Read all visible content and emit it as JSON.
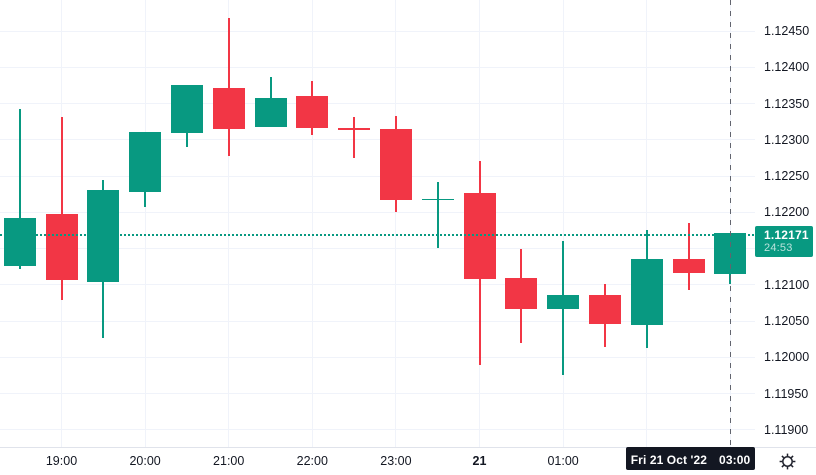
{
  "chart_data": {
    "type": "candlestick",
    "interval_minutes": 30,
    "up_color": "#089981",
    "down_color": "#F23645",
    "grid_color": "#F0F3FA",
    "axis_text_color": "#131722",
    "last_price": "1.12171",
    "countdown": "24:53",
    "last_price_line_color": "#089981",
    "crosshair_color": "#62656E",
    "time_badge": {
      "date": "Fri 21 Oct '22",
      "time": "03:00"
    },
    "y_axis": {
      "ticks": [
        "1.12450",
        "1.12400",
        "1.12350",
        "1.12300",
        "1.12250",
        "1.12200",
        "1.12150",
        "1.12100",
        "1.12050",
        "1.12000",
        "1.11950",
        "1.11900"
      ],
      "range_top": 1.1249283,
      "range_bottom": 1.1187617
    },
    "x_axis": {
      "ticks": [
        {
          "label": "19:00",
          "bold": false
        },
        {
          "label": "20:00",
          "bold": false
        },
        {
          "label": "21:00",
          "bold": false
        },
        {
          "label": "22:00",
          "bold": false
        },
        {
          "label": "23:00",
          "bold": false
        },
        {
          "label": "21",
          "bold": true
        },
        {
          "label": "01:00",
          "bold": false
        },
        {
          "label": "02:00",
          "bold": false
        },
        {
          "label": "03:00",
          "bold": false
        }
      ]
    },
    "candles": [
      {
        "time": "18:30",
        "open": 1.12126,
        "high": 1.12343,
        "low": 1.12122,
        "close": 1.12192
      },
      {
        "time": "19:00",
        "open": 1.12197,
        "high": 1.12332,
        "low": 1.12079,
        "close": 1.12107
      },
      {
        "time": "19:30",
        "open": 1.12104,
        "high": 1.12244,
        "low": 1.12027,
        "close": 1.12231
      },
      {
        "time": "20:00",
        "open": 1.12228,
        "high": 1.12311,
        "low": 1.12207,
        "close": 1.12311
      },
      {
        "time": "20:30",
        "open": 1.12309,
        "high": 1.12375,
        "low": 1.1229,
        "close": 1.12375
      },
      {
        "time": "21:00",
        "open": 1.12372,
        "high": 1.12468,
        "low": 1.12277,
        "close": 1.12315
      },
      {
        "time": "21:30",
        "open": 1.12317,
        "high": 1.12386,
        "low": 1.12317,
        "close": 1.12358
      },
      {
        "time": "22:00",
        "open": 1.12361,
        "high": 1.12381,
        "low": 1.12306,
        "close": 1.12316
      },
      {
        "time": "22:30",
        "open": 1.12316,
        "high": 1.12332,
        "low": 1.12275,
        "close": 1.12314
      },
      {
        "time": "23:00",
        "open": 1.12315,
        "high": 1.12333,
        "low": 1.12201,
        "close": 1.12217
      },
      {
        "time": "23:30",
        "open": 1.12217,
        "high": 1.12242,
        "low": 1.12151,
        "close": 1.12219
      },
      {
        "time": "00:00",
        "open": 1.12227,
        "high": 1.12271,
        "low": 1.11989,
        "close": 1.12108
      },
      {
        "time": "00:30",
        "open": 1.1211,
        "high": 1.12149,
        "low": 1.1202,
        "close": 1.12066
      },
      {
        "time": "01:00",
        "open": 1.12066,
        "high": 1.12161,
        "low": 1.11976,
        "close": 1.12086
      },
      {
        "time": "01:30",
        "open": 1.12086,
        "high": 1.12101,
        "low": 1.12014,
        "close": 1.12046
      },
      {
        "time": "02:00",
        "open": 1.12045,
        "high": 1.12176,
        "low": 1.12013,
        "close": 1.12136
      },
      {
        "time": "02:30",
        "open": 1.12136,
        "high": 1.12185,
        "low": 1.12093,
        "close": 1.12116
      },
      {
        "time": "03:00",
        "open": 1.12115,
        "high": 1.12171,
        "low": 1.12101,
        "close": 1.12171
      }
    ]
  }
}
